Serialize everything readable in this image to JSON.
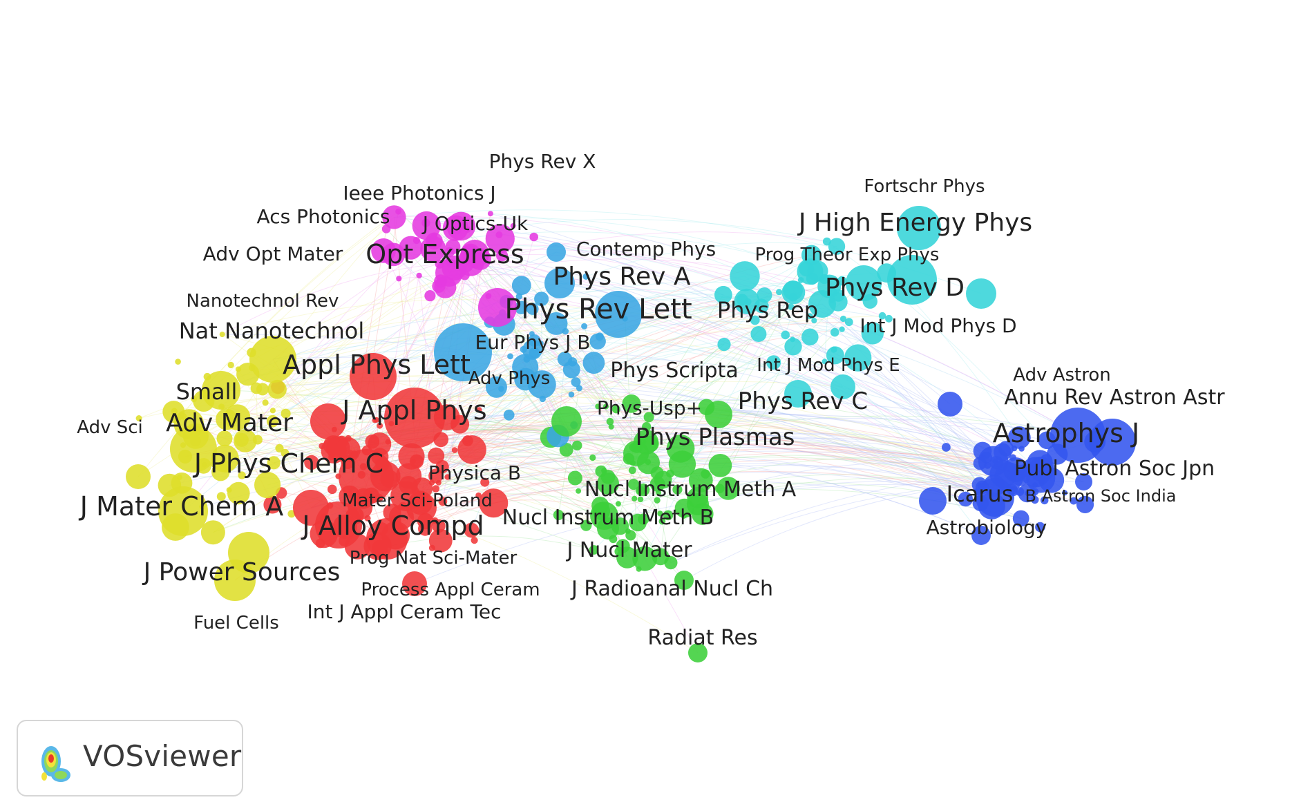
{
  "app": {
    "brand": "VOSviewer"
  },
  "clusters": {
    "red": "#f0383a",
    "yellow": "#dede2a",
    "magenta": "#e53ae0",
    "lightblue": "#3aa6e2",
    "green": "#3ccf3a",
    "cyan": "#35d4d8",
    "blue": "#3355ee"
  },
  "labels": {
    "physRevX": "Phys Rev X",
    "ieeePhotonicsJ": "Ieee Photonics J",
    "acsPhotonics": "Acs Photonics",
    "jOpticsUk": "J Optics-Uk",
    "advOptMater": "Adv Opt Mater",
    "optExpress": "Opt Express",
    "contempPhys": "Contemp Phys",
    "physRevA": "Phys Rev A",
    "nanotechnolRev": "Nanotechnol Rev",
    "physRevLett": "Phys Rev Lett",
    "natNanotechnol": "Nat Nanotechnol",
    "eurPhysJB": "Eur Phys J B",
    "applPhysLett": "Appl Phys Lett",
    "advPhys": "Adv Phys",
    "small": "Small",
    "jApplPhys": "J Appl Phys",
    "advSci": "Adv Sci",
    "advMater": "Adv Mater",
    "jPhysChemC": "J Phys Chem C",
    "physicaB": "Physica B",
    "materSciPoland": "Mater Sci-Poland",
    "jMaterChemA": "J Mater Chem A",
    "jAlloyCompd": "J Alloy Compd",
    "progNatSciMater": "Prog Nat Sci-Mater",
    "jPowerSources": "J Power Sources",
    "processApplCeram": "Process Appl Ceram",
    "intJApplCeramTec": "Int J Appl Ceram Tec",
    "fuelCells": "Fuel Cells",
    "fortschrPhys": "Fortschr Phys",
    "jHighEnergyPhys": "J High Energy Phys",
    "progTheorExpPhys": "Prog Theor Exp Phys",
    "physRevD": "Phys Rev D",
    "physRep": "Phys Rep",
    "intJModPhysD": "Int J Mod Phys D",
    "physScripta": "Phys Scripta",
    "intJModPhysE": "Int J Mod Phys E",
    "physUsp": "Phys-Usp+",
    "physRevC": "Phys Rev C",
    "physPlasmas": "Phys Plasmas",
    "nuclInstrumMethA": "Nucl Instrum Meth A",
    "nuclInstrumMethB": "Nucl Instrum Meth B",
    "jNuclMater": "J Nucl Mater",
    "jRadioanalNuclCh": "J Radioanal Nucl Ch",
    "radiatRes": "Radiat Res",
    "advAstron": "Adv Astron",
    "annuRevAstronAstr": "Annu Rev Astron Astr",
    "astrophysJ": "Astrophys J",
    "publAstronSocJpn": "Publ Astron Soc Jpn",
    "icarus": "Icarus",
    "bAstronSocIndia": "B Astron Soc India",
    "astrobiology": "Astrobiology"
  }
}
